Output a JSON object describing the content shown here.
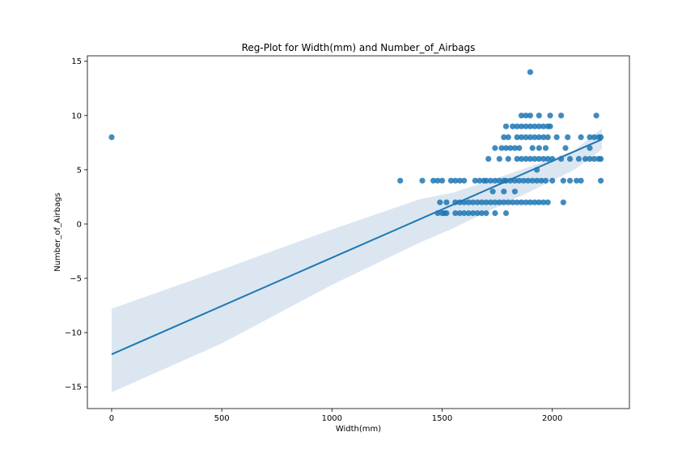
{
  "chart_data": {
    "type": "scatter",
    "title": "Reg-Plot for Width(mm) and Number_of_Airbags",
    "xlabel": "Width(mm)",
    "ylabel": "Number_of_Airbags",
    "xlim": [
      -110,
      2350
    ],
    "ylim": [
      -17,
      15.5
    ],
    "xticks": [
      0,
      500,
      1000,
      1500,
      2000
    ],
    "yticks": [
      -15,
      -10,
      -5,
      0,
      5,
      10,
      15
    ],
    "xtick_labels": [
      "0",
      "500",
      "1000",
      "1500",
      "2000"
    ],
    "ytick_labels": [
      "−15",
      "−10",
      "−5",
      "0",
      "5",
      "10",
      "15"
    ],
    "grid": false,
    "colors": {
      "points": "#1f77b4",
      "line": "#1f77b4",
      "band": "#dbe6f1"
    },
    "series": [
      {
        "points": [
          [
            0,
            8
          ],
          [
            1310,
            4
          ],
          [
            1410,
            4
          ],
          [
            1460,
            4
          ],
          [
            1480,
            4
          ],
          [
            1500,
            4
          ],
          [
            1540,
            4
          ],
          [
            1560,
            4
          ],
          [
            1580,
            4
          ],
          [
            1600,
            4
          ],
          [
            1650,
            4
          ],
          [
            1670,
            4
          ],
          [
            1690,
            4
          ],
          [
            1700,
            4
          ],
          [
            1720,
            4
          ],
          [
            1740,
            4
          ],
          [
            1760,
            4
          ],
          [
            1780,
            4
          ],
          [
            1790,
            4
          ],
          [
            1810,
            4
          ],
          [
            1830,
            4
          ],
          [
            1850,
            4
          ],
          [
            1870,
            4
          ],
          [
            1890,
            4
          ],
          [
            1910,
            4
          ],
          [
            1930,
            4
          ],
          [
            1950,
            4
          ],
          [
            1970,
            4
          ],
          [
            2000,
            4
          ],
          [
            2050,
            4
          ],
          [
            2080,
            4
          ],
          [
            2110,
            4
          ],
          [
            2130,
            4
          ],
          [
            2220,
            4
          ],
          [
            1480,
            1
          ],
          [
            1500,
            1
          ],
          [
            1510,
            1
          ],
          [
            1520,
            1
          ],
          [
            1560,
            1
          ],
          [
            1580,
            1
          ],
          [
            1600,
            1
          ],
          [
            1620,
            1
          ],
          [
            1640,
            1
          ],
          [
            1660,
            1
          ],
          [
            1680,
            1
          ],
          [
            1700,
            1
          ],
          [
            1740,
            1
          ],
          [
            1790,
            1
          ],
          [
            1490,
            2
          ],
          [
            1520,
            2
          ],
          [
            1560,
            2
          ],
          [
            1580,
            2
          ],
          [
            1600,
            2
          ],
          [
            1620,
            2
          ],
          [
            1640,
            2
          ],
          [
            1660,
            2
          ],
          [
            1680,
            2
          ],
          [
            1700,
            2
          ],
          [
            1720,
            2
          ],
          [
            1740,
            2
          ],
          [
            1760,
            2
          ],
          [
            1780,
            2
          ],
          [
            1800,
            2
          ],
          [
            1820,
            2
          ],
          [
            1840,
            2
          ],
          [
            1860,
            2
          ],
          [
            1880,
            2
          ],
          [
            1900,
            2
          ],
          [
            1920,
            2
          ],
          [
            1940,
            2
          ],
          [
            1960,
            2
          ],
          [
            1980,
            2
          ],
          [
            2050,
            2
          ],
          [
            1730,
            3
          ],
          [
            1780,
            3
          ],
          [
            1830,
            3
          ],
          [
            1710,
            6
          ],
          [
            1760,
            6
          ],
          [
            1800,
            6
          ],
          [
            1840,
            6
          ],
          [
            1860,
            6
          ],
          [
            1880,
            6
          ],
          [
            1900,
            6
          ],
          [
            1920,
            6
          ],
          [
            1940,
            6
          ],
          [
            1960,
            6
          ],
          [
            1980,
            6
          ],
          [
            2000,
            6
          ],
          [
            2040,
            6
          ],
          [
            2080,
            6
          ],
          [
            2120,
            6
          ],
          [
            2150,
            6
          ],
          [
            2170,
            6
          ],
          [
            2190,
            6
          ],
          [
            2210,
            6
          ],
          [
            2220,
            6
          ],
          [
            1740,
            7
          ],
          [
            1770,
            7
          ],
          [
            1790,
            7
          ],
          [
            1810,
            7
          ],
          [
            1830,
            7
          ],
          [
            1850,
            7
          ],
          [
            1910,
            7
          ],
          [
            1940,
            7
          ],
          [
            1970,
            7
          ],
          [
            2060,
            7
          ],
          [
            2170,
            7
          ],
          [
            1780,
            8
          ],
          [
            1800,
            8
          ],
          [
            1840,
            8
          ],
          [
            1860,
            8
          ],
          [
            1880,
            8
          ],
          [
            1900,
            8
          ],
          [
            1920,
            8
          ],
          [
            1940,
            8
          ],
          [
            1960,
            8
          ],
          [
            1980,
            8
          ],
          [
            2020,
            8
          ],
          [
            2070,
            8
          ],
          [
            2130,
            8
          ],
          [
            2170,
            8
          ],
          [
            2190,
            8
          ],
          [
            2210,
            8
          ],
          [
            2220,
            8
          ],
          [
            1790,
            9
          ],
          [
            1820,
            9
          ],
          [
            1840,
            9
          ],
          [
            1860,
            9
          ],
          [
            1880,
            9
          ],
          [
            1900,
            9
          ],
          [
            1920,
            9
          ],
          [
            1940,
            9
          ],
          [
            1960,
            9
          ],
          [
            1980,
            9
          ],
          [
            1990,
            9
          ],
          [
            1860,
            10
          ],
          [
            1880,
            10
          ],
          [
            1900,
            10
          ],
          [
            1940,
            10
          ],
          [
            1990,
            10
          ],
          [
            2040,
            10
          ],
          [
            2200,
            10
          ],
          [
            1900,
            14
          ],
          [
            1930,
            5
          ]
        ]
      }
    ],
    "regression": {
      "x_start": 0,
      "y_start": -12.0,
      "x_end": 2225,
      "y_end": 7.8
    },
    "confidence_band": {
      "x": [
        0,
        500,
        1000,
        1400,
        1550,
        1700,
        1900,
        2100,
        2225
      ],
      "lower": [
        -15.5,
        -11.0,
        -5.6,
        -1.7,
        -0.4,
        1.1,
        3.0,
        5.0,
        6.9
      ],
      "upper": [
        -7.8,
        -4.2,
        -0.5,
        2.3,
        2.9,
        3.9,
        5.3,
        6.8,
        8.8
      ]
    }
  }
}
